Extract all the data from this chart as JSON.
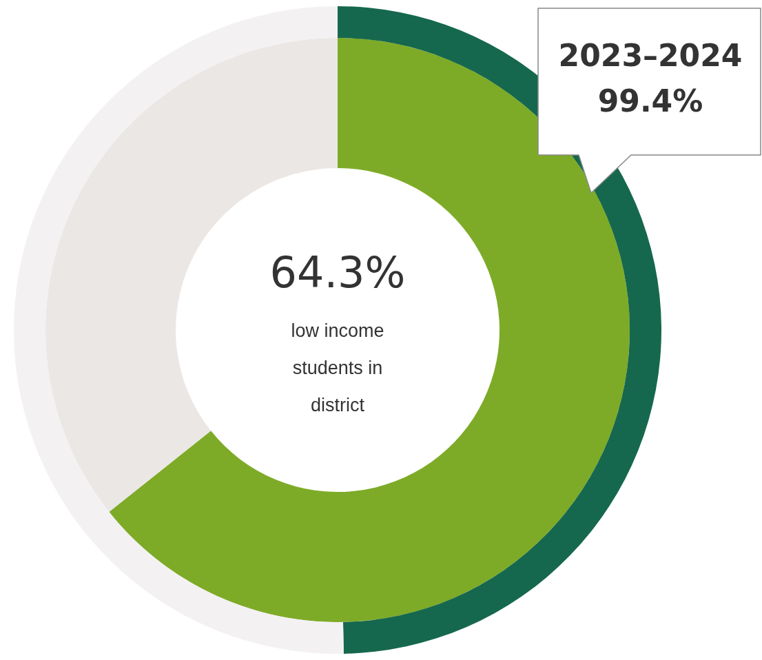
{
  "chart_data": {
    "type": "donut",
    "categories": [
      null,
      null
    ],
    "series": [
      {
        "values": [
          49.7,
          50.3
        ],
        "colors": [
          "#15684d",
          "#f3f1f2"
        ]
      },
      {
        "values": [
          64.3,
          35.7
        ],
        "colors": [
          "#7eab27",
          "#ebe7e5"
        ]
      }
    ],
    "legend": false,
    "annotations": [
      "64.3%",
      "low income students in district",
      "2023–2024",
      "99.4%"
    ]
  }
}
